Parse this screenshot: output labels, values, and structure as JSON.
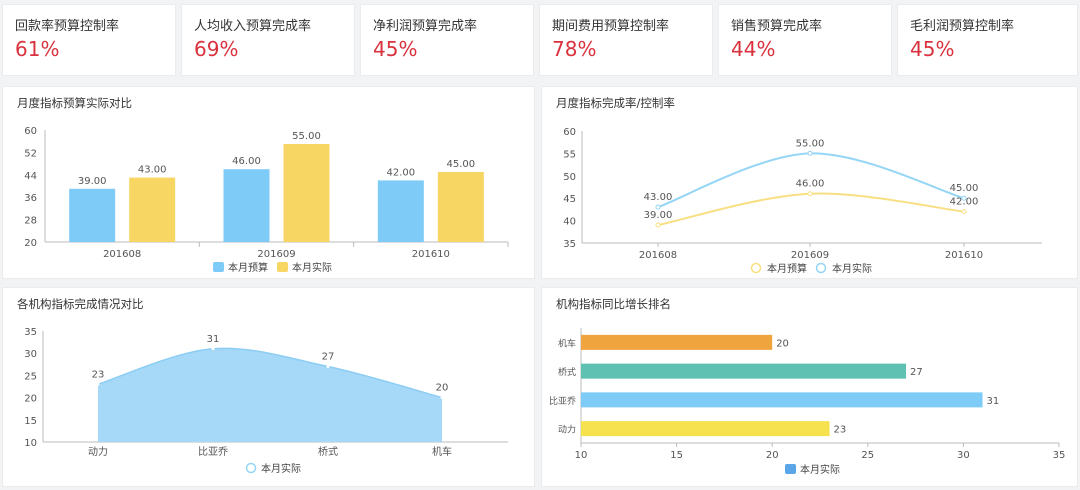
{
  "kpis": [
    {
      "label": "回款率预算控制率",
      "value": "61%"
    },
    {
      "label": "人均收入预算完成率",
      "value": "69%"
    },
    {
      "label": "净利润预算完成率",
      "value": "45%"
    },
    {
      "label": "期间费用预算控制率",
      "value": "78%"
    },
    {
      "label": "销售预算完成率",
      "value": "44%"
    },
    {
      "label": "毛利润预算控制率",
      "value": "45%"
    }
  ],
  "panels": {
    "p1": {
      "title": "月度指标预算实际对比"
    },
    "p2": {
      "title": "月度指标完成率/控制率"
    },
    "p3": {
      "title": "各机构指标完成情况对比"
    },
    "p4": {
      "title": "机构指标同比增长排名"
    }
  },
  "chart_data": [
    {
      "type": "bar",
      "categories": [
        "201608",
        "201609",
        "201610"
      ],
      "series": [
        {
          "name": "本月预算",
          "values": [
            39.0,
            46.0,
            42.0
          ],
          "color": "#7ecbf7"
        },
        {
          "name": "本月实际",
          "values": [
            43.0,
            55.0,
            45.0
          ],
          "color": "#f8d664"
        }
      ],
      "ylim": [
        20,
        60
      ],
      "yticks": [
        20,
        28,
        36,
        44,
        52,
        60
      ],
      "data_labels": [
        "39.00",
        "46.00",
        "42.00",
        "43.00",
        "55.00",
        "45.00"
      ],
      "legend": "bottom",
      "grid": false
    },
    {
      "type": "line",
      "categories": [
        "201608",
        "201609",
        "201610"
      ],
      "series": [
        {
          "name": "本月预算",
          "values": [
            39.0,
            46.0,
            42.0
          ],
          "color": "#f8df83"
        },
        {
          "name": "本月实际",
          "values": [
            43.0,
            55.0,
            45.0
          ],
          "color": "#95d5f5"
        }
      ],
      "ylim": [
        35,
        60
      ],
      "yticks": [
        35,
        40,
        45,
        50,
        55,
        60
      ],
      "data_labels": [
        "39.00",
        "46.00",
        "42.00",
        "43.00",
        "55.00",
        "45.00"
      ],
      "legend": "bottom",
      "grid": false
    },
    {
      "type": "area",
      "categories": [
        "动力",
        "比亚乔",
        "桥式",
        "机车"
      ],
      "series": [
        {
          "name": "本月实际",
          "values": [
            23,
            31,
            27,
            20
          ],
          "color": "#a6d8f8"
        }
      ],
      "ylim": [
        10,
        35
      ],
      "yticks": [
        10,
        15,
        20,
        25,
        30,
        35
      ],
      "data_labels": [
        "23",
        "31",
        "27",
        "20"
      ],
      "legend": "bottom",
      "grid": false
    },
    {
      "type": "bar",
      "orientation": "horizontal",
      "categories": [
        "机车",
        "桥式",
        "比亚乔",
        "动力"
      ],
      "series": [
        {
          "name": "本月实际",
          "values": [
            20,
            27,
            31,
            23
          ],
          "colors": [
            "#f0a43e",
            "#5ec1b1",
            "#7ecbf7",
            "#f6e24e"
          ],
          "legend_color": "#5aa6e8"
        }
      ],
      "xlim": [
        10,
        35
      ],
      "xticks": [
        10,
        15,
        20,
        25,
        30,
        35
      ],
      "data_labels": [
        "20",
        "27",
        "31",
        "23"
      ],
      "legend": "bottom",
      "grid": false
    }
  ]
}
